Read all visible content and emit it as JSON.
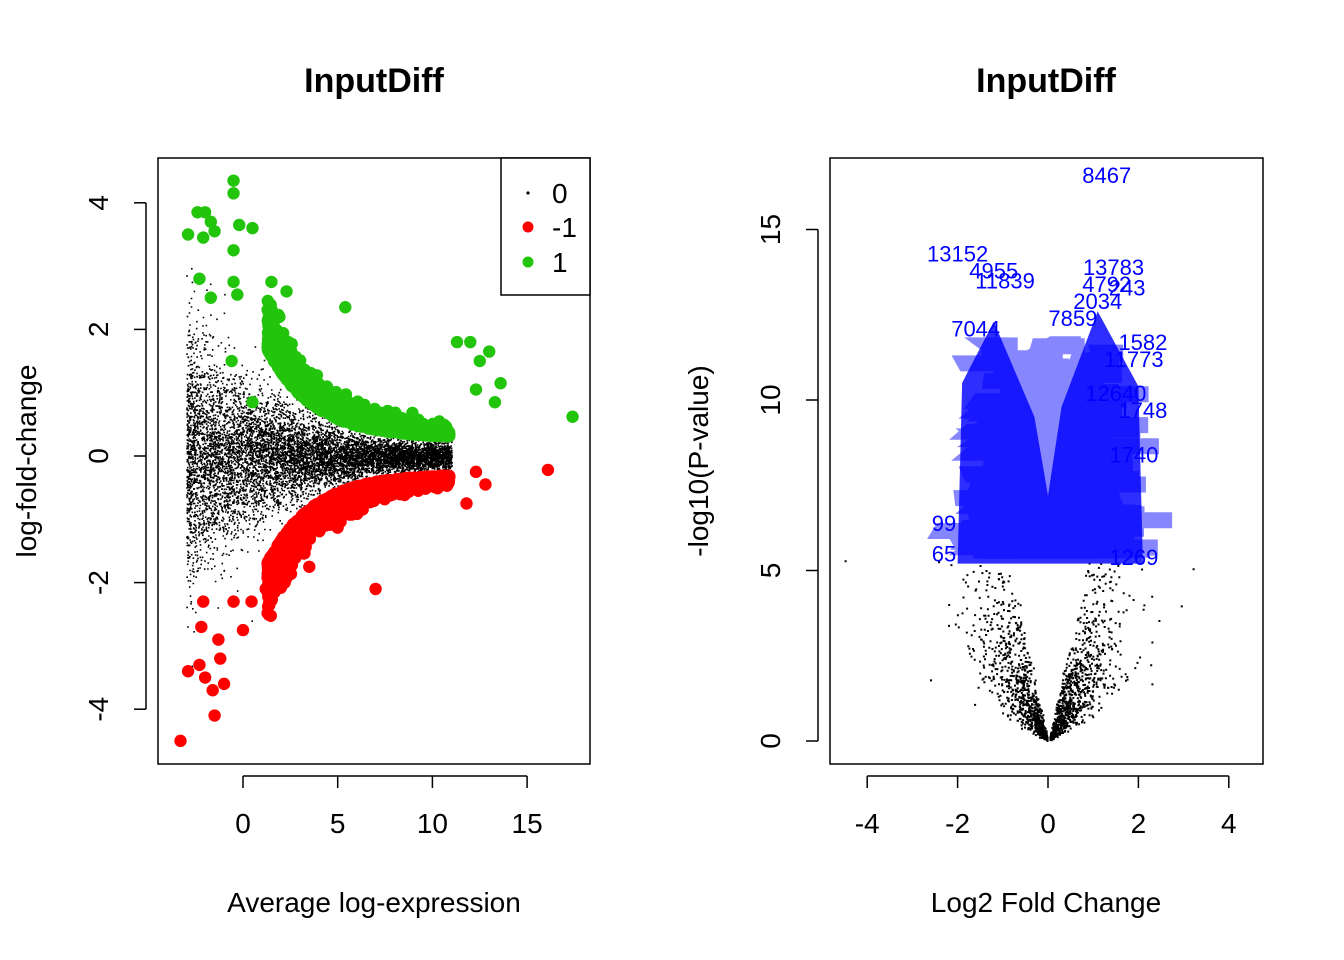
{
  "chart_data": [
    {
      "type": "scatter",
      "title": "InputDiff",
      "xlabel": "Average log-expression",
      "ylabel": "log-fold-change",
      "xlim": [
        -3.5,
        18
      ],
      "ylim": [
        -4.8,
        4.7
      ],
      "xticks": [
        "0",
        "5",
        "10",
        "15"
      ],
      "yticks": [
        "-4",
        "-2",
        "0",
        "2",
        "4"
      ],
      "legend": {
        "position": "top-right",
        "entries": [
          {
            "label": "0",
            "color": "#000000",
            "marker": "small-dot"
          },
          {
            "label": "-1",
            "color": "#ff0000",
            "marker": "dot"
          },
          {
            "label": "1",
            "color": "#22c40c",
            "marker": "dot"
          }
        ]
      },
      "series": [
        {
          "name": "0",
          "color": "#000000",
          "description_points": "dense cloud, logFC roughly -3 to 3 near low expression, narrowing toward 0 above 10"
        },
        {
          "name": "-1",
          "color": "#ff0000",
          "points": [
            [
              -3.3,
              -4.5
            ],
            [
              -1.5,
              -4.1
            ],
            [
              -2.0,
              -3.5
            ],
            [
              -1.6,
              -3.7
            ],
            [
              -1.0,
              -3.6
            ],
            [
              -2.9,
              -3.4
            ],
            [
              -2.3,
              -3.3
            ],
            [
              -1.2,
              -3.2
            ],
            [
              -1.3,
              -2.9
            ],
            [
              -2.2,
              -2.7
            ],
            [
              -2.1,
              -2.3
            ],
            [
              -0.5,
              -2.3
            ],
            [
              0.0,
              -2.75
            ],
            [
              0.45,
              -2.3
            ],
            [
              1.2,
              -2.1
            ],
            [
              2.2,
              -2.0
            ],
            [
              3.5,
              -1.75
            ],
            [
              7.0,
              -2.1
            ],
            [
              16.1,
              -0.22
            ],
            [
              12.3,
              -0.25
            ],
            [
              12.8,
              -0.45
            ],
            [
              11.8,
              -0.75
            ]
          ]
        },
        {
          "name": "1",
          "color": "#22c40c",
          "points": [
            [
              -0.5,
              4.35
            ],
            [
              -0.5,
              4.15
            ],
            [
              -2.4,
              3.85
            ],
            [
              -2.0,
              3.85
            ],
            [
              -1.7,
              3.7
            ],
            [
              -2.9,
              3.5
            ],
            [
              -2.1,
              3.45
            ],
            [
              -1.5,
              3.55
            ],
            [
              0.5,
              3.6
            ],
            [
              -0.2,
              3.65
            ],
            [
              -0.5,
              3.25
            ],
            [
              -2.3,
              2.8
            ],
            [
              -0.5,
              2.75
            ],
            [
              -0.3,
              2.55
            ],
            [
              -1.7,
              2.5
            ],
            [
              1.5,
              2.75
            ],
            [
              2.3,
              2.6
            ],
            [
              5.4,
              2.35
            ],
            [
              -0.6,
              1.5
            ],
            [
              0.5,
              0.85
            ],
            [
              12.0,
              1.8
            ],
            [
              11.3,
              1.8
            ],
            [
              12.5,
              1.5
            ],
            [
              13.0,
              1.65
            ],
            [
              12.3,
              1.05
            ],
            [
              13.6,
              1.15
            ],
            [
              13.3,
              0.85
            ],
            [
              17.4,
              0.62
            ]
          ]
        }
      ]
    },
    {
      "type": "scatter",
      "title": "InputDiff",
      "xlabel": "Log2 Fold Change",
      "ylabel": "-log10(P-value)",
      "xlim": [
        -4.6,
        4.6
      ],
      "ylim": [
        -0.7,
        17.2
      ],
      "xticks": [
        "-4",
        "-2",
        "0",
        "2",
        "4"
      ],
      "yticks": [
        "0",
        "5",
        "10",
        "15"
      ],
      "series": [
        {
          "name": "all",
          "color": "#000000",
          "description_points": "volcano-shaped cloud; points above -log10(P) 5.3 are labelled in blue"
        }
      ],
      "annotations": [
        {
          "text": "8467",
          "x": 1.3,
          "y": 16.6
        },
        {
          "text": "13152",
          "x": -2.0,
          "y": 14.3
        },
        {
          "text": "4955",
          "x": -1.2,
          "y": 13.8
        },
        {
          "text": "13783",
          "x": 1.45,
          "y": 13.9
        },
        {
          "text": "11839",
          "x": -0.95,
          "y": 13.5
        },
        {
          "text": "4792",
          "x": 1.3,
          "y": 13.4
        },
        {
          "text": "243",
          "x": 1.75,
          "y": 13.3
        },
        {
          "text": "2034",
          "x": 1.1,
          "y": 12.9
        },
        {
          "text": "7859",
          "x": 0.55,
          "y": 12.4
        },
        {
          "text": "7044",
          "x": -1.6,
          "y": 12.1
        },
        {
          "text": "1582",
          "x": 2.1,
          "y": 11.7
        },
        {
          "text": "11773",
          "x": 1.9,
          "y": 11.2
        },
        {
          "text": "12640",
          "x": 1.5,
          "y": 10.2
        },
        {
          "text": "1748",
          "x": 2.1,
          "y": 9.7
        },
        {
          "text": "1740",
          "x": 1.9,
          "y": 8.4
        },
        {
          "text": "99",
          "x": -2.3,
          "y": 6.4
        },
        {
          "text": "65",
          "x": -2.3,
          "y": 5.5
        },
        {
          "text": "1269",
          "x": 1.9,
          "y": 5.4
        }
      ]
    }
  ]
}
